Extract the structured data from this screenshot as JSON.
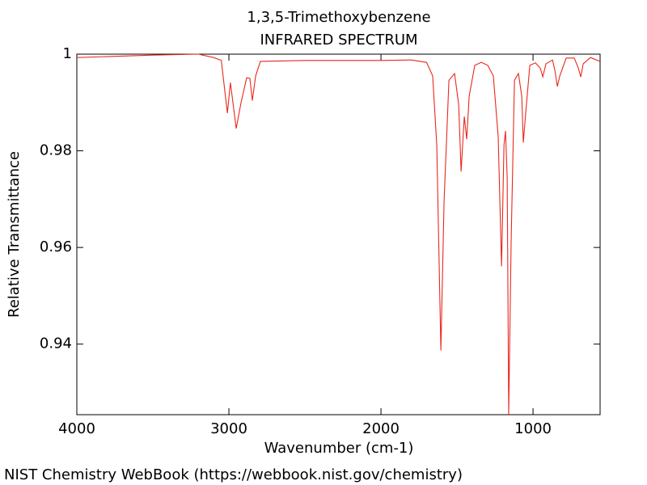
{
  "chart_data": {
    "type": "line",
    "title": "1,3,5-Trimethoxybenzene",
    "subtitle": "INFRARED SPECTRUM",
    "x_label": "Wavenumber (cm-1)",
    "y_label": "Relative Transmittance",
    "footer": "NIST Chemistry WebBook (https://webbook.nist.gov/chemistry)",
    "x": [
      4000,
      3500,
      3200,
      3100,
      3050,
      3010,
      2990,
      2952,
      2920,
      2883,
      2862,
      2846,
      2824,
      2793,
      2500,
      2000,
      1800,
      1700,
      1660,
      1633,
      1606,
      1585,
      1553,
      1516,
      1489,
      1473,
      1452,
      1436,
      1420,
      1383,
      1340,
      1298,
      1261,
      1229,
      1207,
      1191,
      1181,
      1170,
      1160,
      1144,
      1122,
      1096,
      1074,
      1064,
      1048,
      1021,
      984,
      952,
      936,
      915,
      872,
      856,
      840,
      824,
      782,
      729,
      702,
      686,
      670,
      622,
      559
    ],
    "series": [
      {
        "name": "1,3,5-Trimethoxybenzene",
        "color": "#e8281e",
        "values": [
          0.9993,
          0.9998,
          1.0,
          0.9993,
          0.9987,
          0.9878,
          0.9941,
          0.9846,
          0.99,
          0.9951,
          0.995,
          0.9904,
          0.9955,
          0.9985,
          0.9987,
          0.9987,
          0.9988,
          0.9983,
          0.9955,
          0.9812,
          0.9387,
          0.9695,
          0.9946,
          0.996,
          0.9896,
          0.9757,
          0.9871,
          0.9824,
          0.9913,
          0.9977,
          0.9983,
          0.9977,
          0.9955,
          0.9829,
          0.9561,
          0.9812,
          0.9841,
          0.9745,
          0.9254,
          0.9611,
          0.9946,
          0.996,
          0.9913,
          0.9817,
          0.9879,
          0.9977,
          0.9982,
          0.9971,
          0.9953,
          0.998,
          0.9988,
          0.9966,
          0.9933,
          0.9955,
          0.9992,
          0.9992,
          0.9971,
          0.9953,
          0.998,
          0.9993,
          0.9985
        ]
      }
    ],
    "xlim": [
      4000,
      559
    ],
    "ylim": [
      0.9254,
      1.0
    ],
    "xticks": [
      4000,
      3000,
      2000,
      1000
    ],
    "yticks": [
      0.94,
      0.96,
      0.98,
      1
    ]
  }
}
